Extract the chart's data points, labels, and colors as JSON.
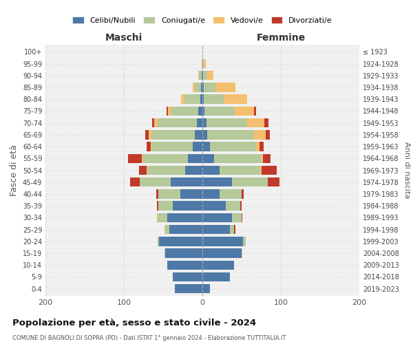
{
  "age_groups": [
    "0-4",
    "5-9",
    "10-14",
    "15-19",
    "20-24",
    "25-29",
    "30-34",
    "35-39",
    "40-44",
    "45-49",
    "50-54",
    "55-59",
    "60-64",
    "65-69",
    "70-74",
    "75-79",
    "80-84",
    "85-89",
    "90-94",
    "95-99",
    "100+"
  ],
  "birth_years": [
    "2019-2023",
    "2014-2018",
    "2009-2013",
    "2004-2008",
    "1999-2003",
    "1994-1998",
    "1989-1993",
    "1984-1988",
    "1979-1983",
    "1974-1978",
    "1969-1973",
    "1964-1968",
    "1959-1963",
    "1954-1958",
    "1949-1953",
    "1944-1948",
    "1939-1943",
    "1934-1938",
    "1929-1933",
    "1924-1928",
    "≤ 1923"
  ],
  "maschi": {
    "celibi": [
      35,
      38,
      45,
      47,
      55,
      42,
      45,
      38,
      28,
      40,
      22,
      18,
      12,
      10,
      7,
      5,
      3,
      2,
      1,
      0,
      0
    ],
    "coniugati": [
      0,
      0,
      0,
      1,
      2,
      5,
      12,
      18,
      28,
      40,
      48,
      58,
      52,
      55,
      50,
      35,
      20,
      8,
      3,
      1,
      0
    ],
    "vedovi": [
      0,
      0,
      0,
      0,
      0,
      1,
      1,
      0,
      0,
      0,
      1,
      1,
      2,
      3,
      4,
      4,
      4,
      2,
      1,
      0,
      0
    ],
    "divorziati": [
      0,
      0,
      0,
      0,
      0,
      0,
      0,
      2,
      3,
      12,
      10,
      18,
      5,
      5,
      3,
      2,
      0,
      0,
      0,
      0,
      0
    ]
  },
  "femmine": {
    "nubili": [
      10,
      35,
      40,
      50,
      52,
      35,
      38,
      30,
      22,
      38,
      22,
      15,
      10,
      6,
      5,
      3,
      2,
      2,
      1,
      0,
      0
    ],
    "coniugate": [
      0,
      0,
      0,
      1,
      3,
      5,
      12,
      18,
      28,
      45,
      52,
      60,
      58,
      60,
      52,
      38,
      25,
      15,
      5,
      2,
      0
    ],
    "vedove": [
      0,
      0,
      0,
      0,
      0,
      0,
      0,
      0,
      0,
      0,
      1,
      2,
      5,
      15,
      22,
      25,
      30,
      25,
      8,
      2,
      0
    ],
    "divorziate": [
      0,
      0,
      0,
      0,
      0,
      2,
      1,
      2,
      3,
      15,
      20,
      10,
      5,
      5,
      5,
      2,
      0,
      0,
      0,
      0,
      0
    ]
  },
  "colors": {
    "celibi_nubili": "#4e79a7",
    "coniugati": "#b5c99a",
    "vedovi": "#f4c06f",
    "divorziati": "#c0392b"
  },
  "title": "Popolazione per età, sesso e stato civile - 2024",
  "subtitle": "COMUNE DI BAGNOLI DI SOPRA (PD) - Dati ISTAT 1° gennaio 2024 - Elaborazione TUTTITALIA.IT",
  "xlabel_maschi": "Maschi",
  "xlabel_femmine": "Femmine",
  "ylabel": "Fasce di età",
  "ylabel_right": "Anni di nascita",
  "xlim": 200,
  "background_color": "#ffffff",
  "grid_color": "#cccccc"
}
